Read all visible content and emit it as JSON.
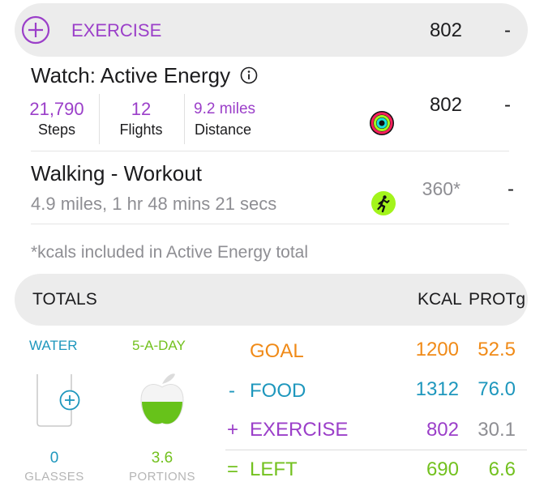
{
  "exercise_header": {
    "label": "EXERCISE",
    "kcal": "802",
    "prot": "-"
  },
  "watch": {
    "title": "Watch: Active Energy",
    "steps_value": "21,790",
    "steps_label": "Steps",
    "flights_value": "12",
    "flights_label": "Flights",
    "distance_value": "9.2 miles",
    "distance_label": "Distance",
    "kcal": "802",
    "prot": "-"
  },
  "walking": {
    "title": "Walking - Workout",
    "detail": "4.9 miles, 1 hr 48 mins 21 secs",
    "kcal": "360*",
    "prot": "-"
  },
  "footnote": "*kcals included in Active Energy total",
  "totals_header": {
    "label": "TOTALS",
    "col_kcal": "KCAL",
    "col_prot": "PROTg"
  },
  "water": {
    "title": "WATER",
    "value": "0",
    "unit": "GLASSES"
  },
  "five_a_day": {
    "title": "5-A-DAY",
    "value": "3.6",
    "unit": "PORTIONS"
  },
  "totals": [
    {
      "sign": "",
      "label": "GOAL",
      "kcal": "1200",
      "prot": "52.5"
    },
    {
      "sign": "-",
      "label": "FOOD",
      "kcal": "1312",
      "prot": "76.0"
    },
    {
      "sign": "+",
      "label": "EXERCISE",
      "kcal": "802",
      "prot": "30.1"
    },
    {
      "sign": "=",
      "label": "LEFT",
      "kcal": "690",
      "prot": "6.6"
    }
  ],
  "colors": {
    "purple": "#9b3fc9",
    "orange": "#f08a17",
    "blue": "#1e97bd",
    "green": "#73c11f",
    "header_bg": "#ececec"
  }
}
